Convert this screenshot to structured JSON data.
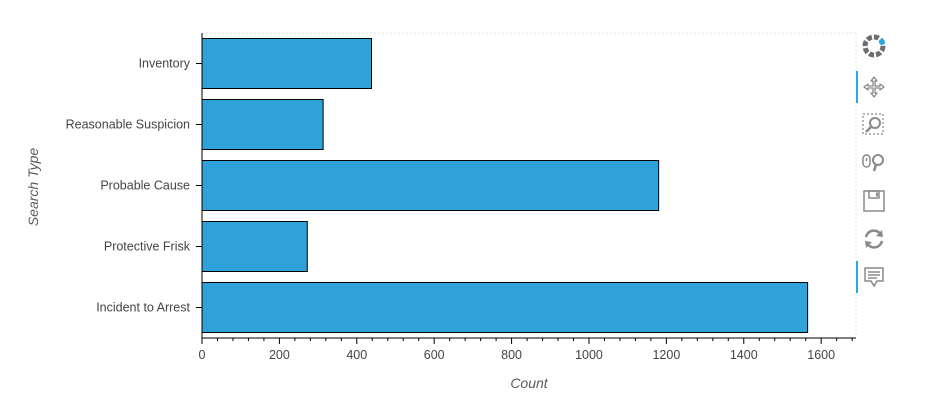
{
  "chart_data": {
    "type": "bar",
    "orientation": "horizontal",
    "categories": [
      "Inventory",
      "Reasonable Suspicion",
      "Probable Cause",
      "Protective Frisk",
      "Incident to Arrest"
    ],
    "values": [
      438,
      313,
      1180,
      272,
      1565
    ],
    "xlabel": "Count",
    "ylabel": "Search Type",
    "xlim": [
      0,
      1690
    ],
    "xticks": [
      0,
      200,
      400,
      600,
      800,
      1000,
      1200,
      1400,
      1600
    ],
    "grid": false,
    "bar_color": "#30a2da",
    "bar_edge_color": "#000000"
  },
  "toolbar": {
    "tools": [
      {
        "name": "bokeh-logo-icon",
        "active": false
      },
      {
        "name": "pan-icon",
        "active": true
      },
      {
        "name": "box-zoom-icon",
        "active": false
      },
      {
        "name": "wheel-zoom-icon",
        "active": false
      },
      {
        "name": "save-icon",
        "active": false
      },
      {
        "name": "reset-icon",
        "active": false
      },
      {
        "name": "hover-icon",
        "active": true
      }
    ],
    "accent_color": "#26aae1"
  }
}
